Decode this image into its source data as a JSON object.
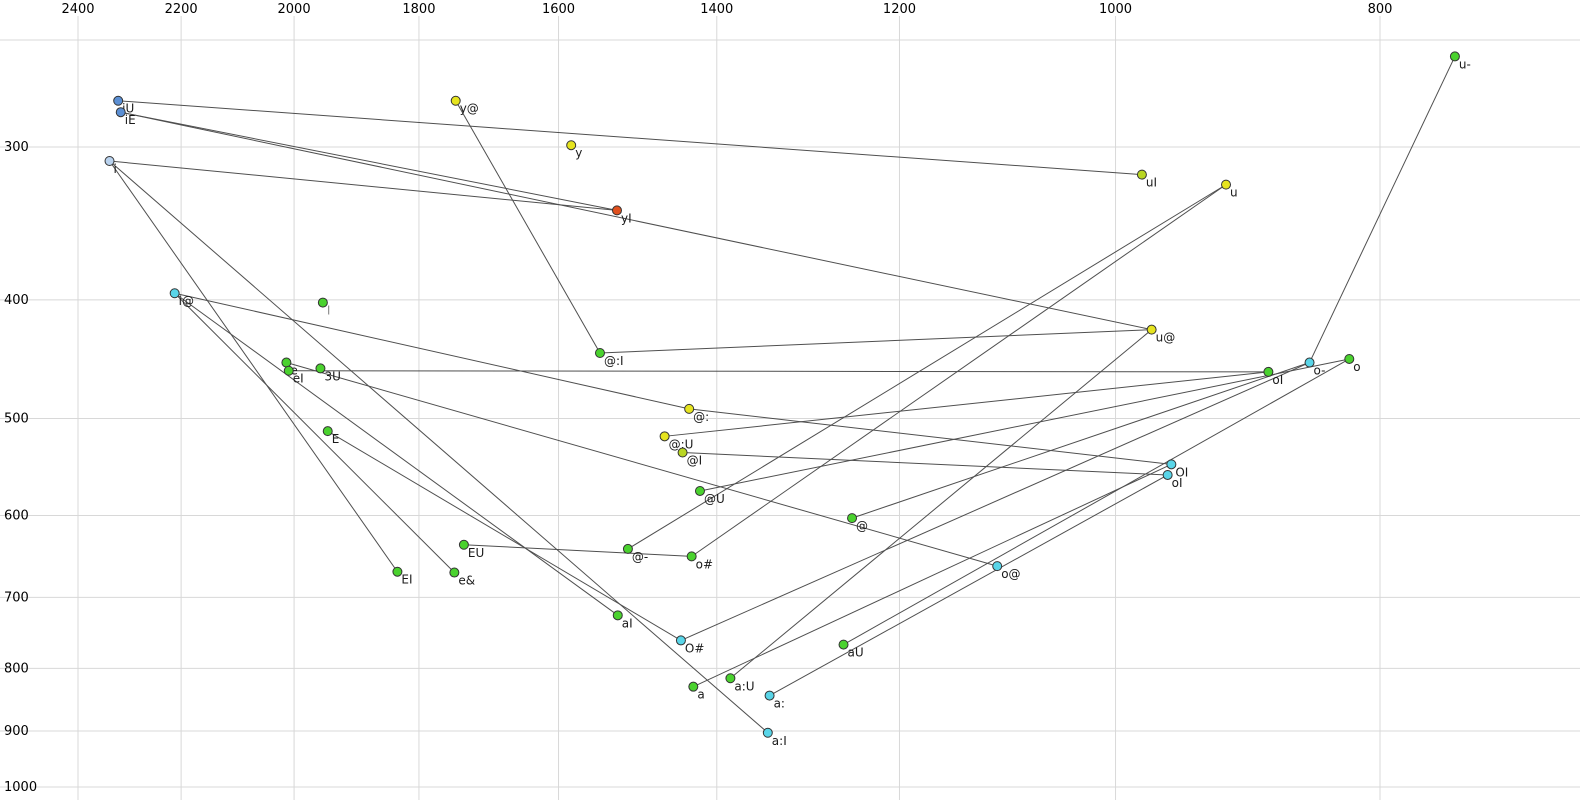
{
  "chart_data": {
    "type": "scatter",
    "title": "",
    "description": "Vowel formant space: F2 on top axis (reversed, log), F1 on left axis (reversed, log), labelled vowel points with diphthong trajectory lines",
    "x_axis": {
      "position": "top",
      "scale": "log",
      "reversed": true,
      "ticks": [
        2400,
        2200,
        2000,
        1800,
        1600,
        1400,
        1200,
        1000,
        800
      ]
    },
    "y_axis": {
      "position": "left",
      "scale": "log",
      "reversed": true,
      "ticks": [
        300,
        400,
        500,
        600,
        700,
        800,
        900,
        1000
      ]
    },
    "grid": true,
    "points": [
      {
        "label": "i",
        "f2": 2337,
        "f1": 308,
        "color": "#b9d2ee"
      },
      {
        "label": "iU",
        "f2": 2320,
        "f1": 275,
        "color": "#5b8fd4"
      },
      {
        "label": "iE",
        "f2": 2315,
        "f1": 281,
        "color": "#5b8fd4"
      },
      {
        "label": "i@",
        "f2": 2212,
        "f1": 395,
        "color": "#59d5e8"
      },
      {
        "label": "I",
        "f2": 1952,
        "f1": 402,
        "color": "#4ad22e",
        "muted": true
      },
      {
        "label": "y@",
        "f2": 1745,
        "f1": 275,
        "color": "#e6e41f"
      },
      {
        "label": "y",
        "f2": 1583,
        "f1": 299,
        "color": "#e6e41f"
      },
      {
        "label": "yI",
        "f2": 1523,
        "f1": 338,
        "color": "#e0501e"
      },
      {
        "label": "e",
        "f2": 2013,
        "f1": 450,
        "color": "#4ad22e"
      },
      {
        "label": "eI",
        "f2": 2009,
        "f1": 457,
        "color": "#4ad22e"
      },
      {
        "label": "3U",
        "f2": 1956,
        "f1": 455,
        "color": "#4ad22e"
      },
      {
        "label": "E",
        "f2": 1944,
        "f1": 512,
        "color": "#4ad22e"
      },
      {
        "label": "EI",
        "f2": 1833,
        "f1": 667,
        "color": "#4ad22e"
      },
      {
        "label": "EU",
        "f2": 1733,
        "f1": 634,
        "color": "#4ad22e"
      },
      {
        "label": "e&",
        "f2": 1747,
        "f1": 668,
        "color": "#4ad22e"
      },
      {
        "label": "@:",
        "f2": 1433,
        "f1": 491,
        "color": "#e6e41f"
      },
      {
        "label": "@:I",
        "f2": 1545,
        "f1": 442,
        "color": "#4ad22e"
      },
      {
        "label": "@:U",
        "f2": 1463,
        "f1": 517,
        "color": "#e6e41f"
      },
      {
        "label": "@I",
        "f2": 1441,
        "f1": 533,
        "color": "#b9d622"
      },
      {
        "label": "@U",
        "f2": 1420,
        "f1": 573,
        "color": "#4ad22e"
      },
      {
        "label": "@",
        "f2": 1249,
        "f1": 603,
        "color": "#4ad22e"
      },
      {
        "label": "@-",
        "f2": 1509,
        "f1": 639,
        "color": "#4ad22e"
      },
      {
        "label": "aI",
        "f2": 1522,
        "f1": 724,
        "color": "#4ad22e"
      },
      {
        "label": "a",
        "f2": 1428,
        "f1": 828,
        "color": "#4ad22e"
      },
      {
        "label": "a:",
        "f2": 1339,
        "f1": 842,
        "color": "#59d5e8"
      },
      {
        "label": "a:I",
        "f2": 1341,
        "f1": 903,
        "color": "#59d5e8"
      },
      {
        "label": "a:U",
        "f2": 1384,
        "f1": 815,
        "color": "#4ad22e"
      },
      {
        "label": "aU",
        "f2": 1258,
        "f1": 765,
        "color": "#4ad22e"
      },
      {
        "label": "o#",
        "f2": 1430,
        "f1": 648,
        "color": "#4ad22e"
      },
      {
        "label": "O#",
        "f2": 1443,
        "f1": 759,
        "color": "#59d5e8"
      },
      {
        "label": "o@",
        "f2": 1105,
        "f1": 660,
        "color": "#59d5e8"
      },
      {
        "label": "OI",
        "f2": 954,
        "f1": 545,
        "color": "#59d5e8"
      },
      {
        "label": "oI",
        "f2": 957,
        "f1": 556,
        "color": "#59d5e8"
      },
      {
        "label": "oI",
        "f2": 879,
        "f1": 458,
        "color": "#4ad22e"
      },
      {
        "label": "o-",
        "f2": 849,
        "f1": 450,
        "color": "#59d5e8"
      },
      {
        "label": "o",
        "f2": 821,
        "f1": 447,
        "color": "#4ad22e"
      },
      {
        "label": "u-",
        "f2": 751,
        "f1": 253,
        "color": "#4ad22e"
      },
      {
        "label": "u",
        "f2": 911,
        "f1": 322,
        "color": "#e6e41f"
      },
      {
        "label": "uI",
        "f2": 978,
        "f1": 316,
        "color": "#b9d622"
      },
      {
        "label": "u@",
        "f2": 970,
        "f1": 423,
        "color": "#e6e41f"
      }
    ],
    "segments": [
      [
        1,
        38
      ],
      [
        2,
        39
      ],
      [
        0,
        7
      ],
      [
        2,
        7
      ],
      [
        0,
        12
      ],
      [
        0,
        25
      ],
      [
        3,
        15
      ],
      [
        3,
        22
      ],
      [
        3,
        14
      ],
      [
        8,
        30
      ],
      [
        9,
        33
      ],
      [
        11,
        29
      ],
      [
        5,
        16
      ],
      [
        16,
        39
      ],
      [
        15,
        31
      ],
      [
        18,
        32
      ],
      [
        19,
        35
      ],
      [
        20,
        34
      ],
      [
        21,
        37
      ],
      [
        13,
        28
      ],
      [
        36,
        34
      ],
      [
        26,
        39
      ],
      [
        27,
        35
      ],
      [
        23,
        31
      ],
      [
        24,
        32
      ],
      [
        28,
        37
      ],
      [
        29,
        34
      ],
      [
        17,
        33
      ]
    ]
  },
  "colors": {
    "background": "#ffffff",
    "grid": "#d8d8d8",
    "trajectory_line": "#3c3c3c",
    "point_stroke": "#333333",
    "point_label": "#1a1a1a",
    "muted_label": "#8f8f8f",
    "tick_label": "#000000"
  }
}
